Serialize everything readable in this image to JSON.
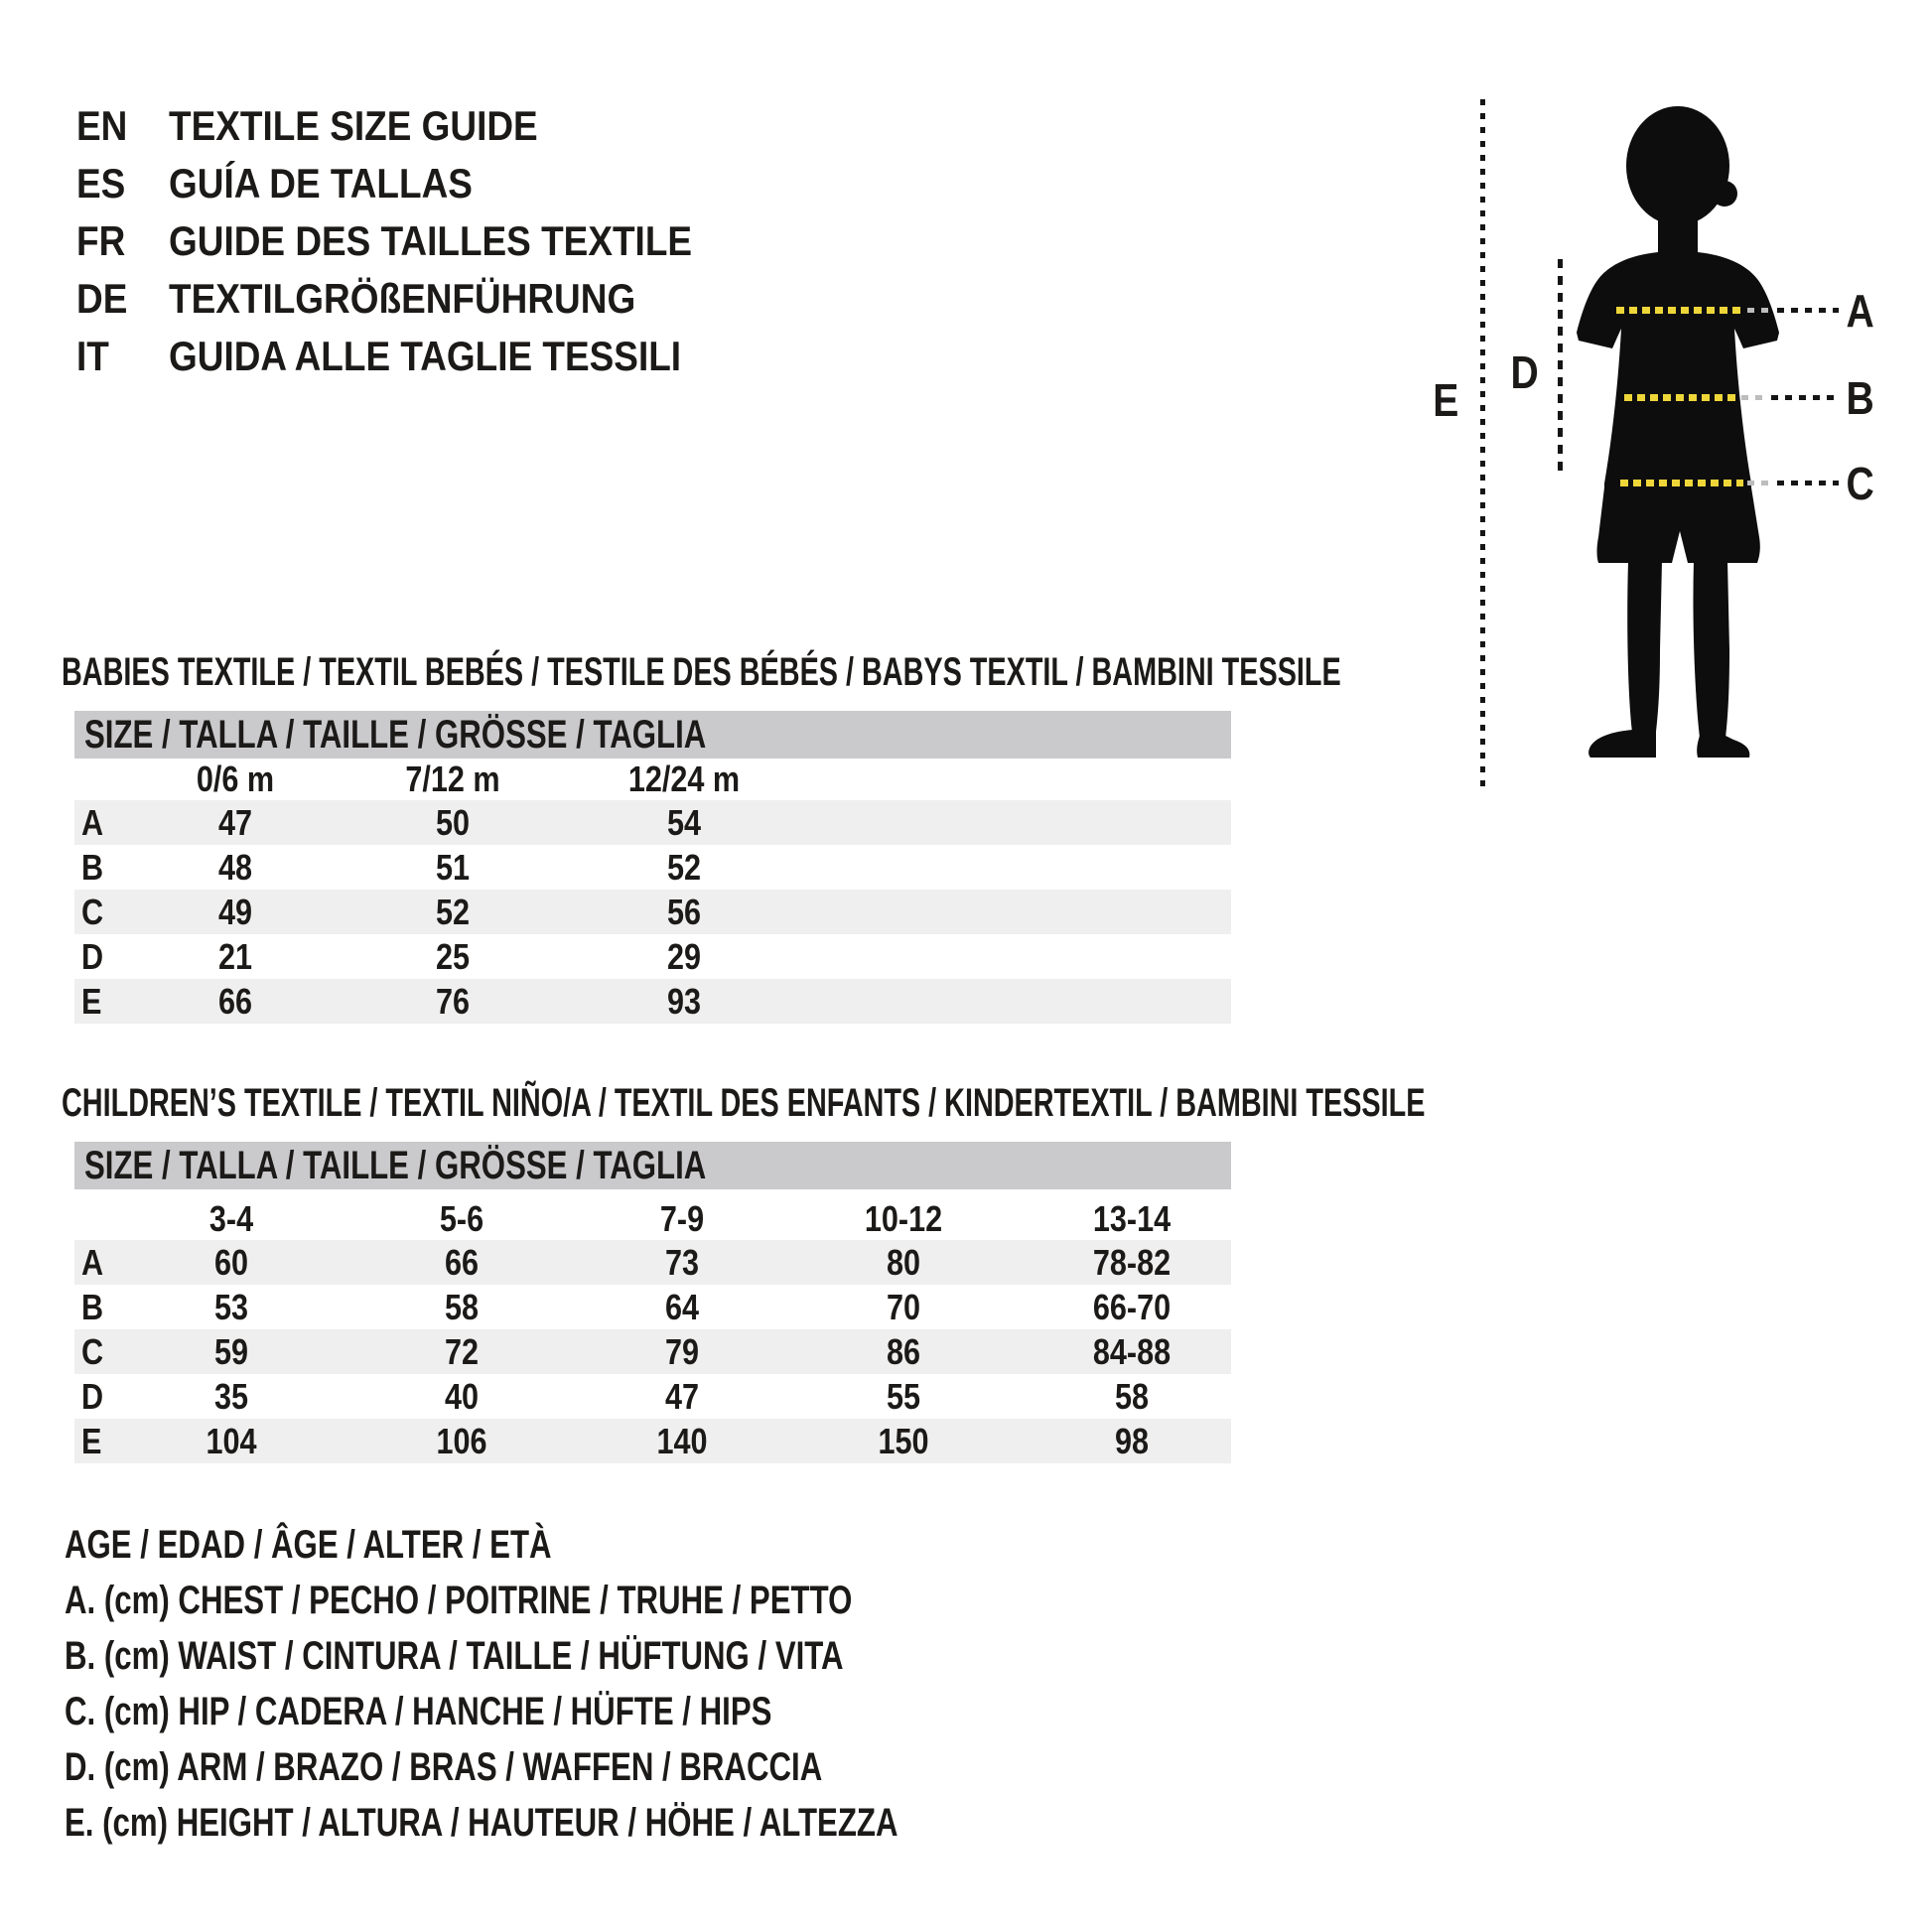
{
  "languages": [
    {
      "code": "EN",
      "title": "TEXTILE SIZE GUIDE"
    },
    {
      "code": "ES",
      "title": "GUÍA DE TALLAS"
    },
    {
      "code": "FR",
      "title": "GUIDE DES TAILLES TEXTILE"
    },
    {
      "code": "DE",
      "title": "TEXTILGRÖßENFÜHRUNG"
    },
    {
      "code": "IT",
      "title": "GUIDA ALLE TAGLIE TESSILI"
    }
  ],
  "figure": {
    "label_a": "A",
    "label_b": "B",
    "label_c": "C",
    "label_d": "D",
    "label_e": "E",
    "colors": {
      "silhouette": "#0d0d0d",
      "measure_yellow": "#eed639",
      "measure_dark": "#151515"
    }
  },
  "babies_table": {
    "section_title": "BABIES TEXTILE / TEXTIL BEBÉS / TESTILE DES BÉBÉS / BABYS TEXTIL / BAMBINI TESSILE",
    "size_header": "SIZE / TALLA / TAILLE / GRÖSSE / TAGLIA",
    "columns": [
      "0/6 m",
      "7/12 m",
      "12/24 m"
    ],
    "rows": [
      {
        "label": "A",
        "values": [
          "47",
          "50",
          "54"
        ]
      },
      {
        "label": "B",
        "values": [
          "48",
          "51",
          "52"
        ]
      },
      {
        "label": "C",
        "values": [
          "49",
          "52",
          "56"
        ]
      },
      {
        "label": "D",
        "values": [
          "21",
          "25",
          "29"
        ]
      },
      {
        "label": "E",
        "values": [
          "66",
          "76",
          "93"
        ]
      }
    ]
  },
  "children_table": {
    "section_title": "CHILDREN’S TEXTILE / TEXTIL NIÑO/A / TEXTIL DES ENFANTS / KINDERTEXTIL / BAMBINI TESSILE",
    "size_header": "SIZE / TALLA / TAILLE / GRÖSSE / TAGLIA",
    "columns": [
      "3-4",
      "5-6",
      "7-9",
      "10-12",
      "13-14"
    ],
    "rows": [
      {
        "label": "A",
        "values": [
          "60",
          "66",
          "73",
          "80",
          "78-82"
        ]
      },
      {
        "label": "B",
        "values": [
          "53",
          "58",
          "64",
          "70",
          "66-70"
        ]
      },
      {
        "label": "C",
        "values": [
          "59",
          "72",
          "79",
          "86",
          "84-88"
        ]
      },
      {
        "label": "D",
        "values": [
          "35",
          "40",
          "47",
          "55",
          "58"
        ]
      },
      {
        "label": "E",
        "values": [
          "104",
          "106",
          "140",
          "150",
          "98"
        ]
      }
    ]
  },
  "legend": [
    "AGE / EDAD / ÂGE / ALTER / ETÀ",
    "A. (cm) CHEST / PECHO / POITRINE / TRUHE / PETTO",
    "B. (cm) WAIST / CINTURA / TAILLE / HÜFTUNG / VITA",
    "C. (cm) HIP / CADERA / HANCHE / HÜFTE / HIPS",
    "D. (cm) ARM / BRAZO / BRAS / WAFFEN / BRACCIA",
    "E. (cm) HEIGHT / ALTURA / HAUTEUR / HÖHE / ALTEZZA"
  ]
}
